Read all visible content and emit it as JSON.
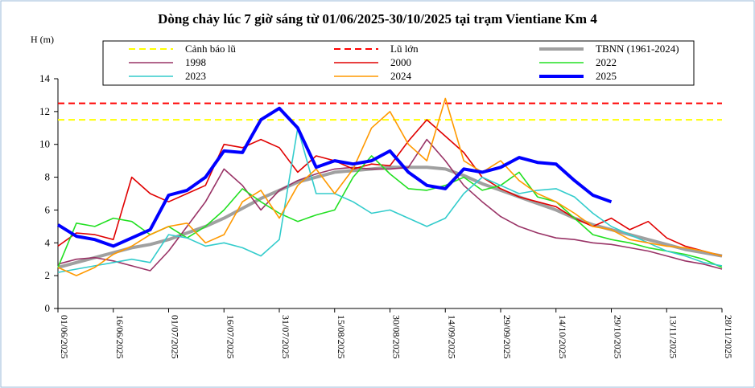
{
  "chart_data": {
    "type": "line",
    "title": "Dòng chảy lúc 7 giờ sáng từ 01/06/2025-30/10/2025 tại trạm Vientiane Km 4",
    "y_label": "H (m)",
    "x": [
      "01/06/2025",
      "06/06/2025",
      "11/06/2025",
      "16/06/2025",
      "21/06/2025",
      "26/06/2025",
      "01/07/2025",
      "06/07/2025",
      "11/07/2025",
      "16/07/2025",
      "21/07/2025",
      "26/07/2025",
      "31/07/2025",
      "05/08/2025",
      "10/08/2025",
      "15/08/2025",
      "20/08/2025",
      "25/08/2025",
      "30/08/2025",
      "04/09/2025",
      "09/09/2025",
      "14/09/2025",
      "19/09/2025",
      "24/09/2025",
      "29/09/2025",
      "04/10/2025",
      "09/10/2025",
      "14/10/2025",
      "19/10/2025",
      "24/10/2025",
      "29/10/2025",
      "03/11/2025",
      "08/11/2025",
      "13/11/2025",
      "18/11/2025",
      "23/11/2025",
      "28/11/2025"
    ],
    "xlim": [
      "01/06/2025",
      "28/11/2025"
    ],
    "xticks": [
      "01/06/2025",
      "16/06/2025",
      "01/07/2025",
      "16/07/2025",
      "31/07/2025",
      "15/08/2025",
      "30/08/2025",
      "14/09/2025",
      "29/09/2025",
      "14/10/2025",
      "29/10/2025",
      "13/11/2025",
      "28/11/2025"
    ],
    "ylim": [
      0,
      14
    ],
    "yticks": [
      0,
      2,
      4,
      6,
      8,
      10,
      12,
      14
    ],
    "reference_lines": [
      {
        "name": "Cảnh báo lũ",
        "value": 11.5,
        "color": "#ffff00"
      },
      {
        "name": "Lũ lớn",
        "value": 12.5,
        "color": "#ff0000"
      }
    ],
    "series": [
      {
        "name": "TBNN (1961-2024)",
        "color": "#a0a0a0",
        "values": [
          2.5,
          2.8,
          3.1,
          3.4,
          3.7,
          3.9,
          4.2,
          4.6,
          5.0,
          5.5,
          6.1,
          6.7,
          7.2,
          7.7,
          8.0,
          8.3,
          8.4,
          8.5,
          8.6,
          8.6,
          8.6,
          8.5,
          8.1,
          7.6,
          7.2,
          6.8,
          6.4,
          6.0,
          5.5,
          5.1,
          4.8,
          4.5,
          4.2,
          3.9,
          3.6,
          3.4,
          3.2
        ]
      },
      {
        "name": "1998",
        "color": "#993366",
        "values": [
          2.7,
          3.0,
          3.1,
          2.9,
          2.6,
          2.3,
          3.5,
          5.0,
          6.5,
          8.5,
          7.5,
          6.0,
          7.2,
          7.8,
          8.2,
          8.5,
          8.6,
          8.5,
          8.5,
          8.6,
          10.3,
          9.0,
          7.5,
          6.5,
          5.6,
          5.0,
          4.6,
          4.3,
          4.2,
          4.0,
          3.9,
          3.7,
          3.5,
          3.2,
          2.9,
          2.7,
          2.4
        ]
      },
      {
        "name": "2000",
        "color": "#e00000",
        "values": [
          3.8,
          4.6,
          4.5,
          4.2,
          8.0,
          7.0,
          6.5,
          7.0,
          7.5,
          10.0,
          9.8,
          10.3,
          9.8,
          8.3,
          9.3,
          9.0,
          8.5,
          8.8,
          8.7,
          10.2,
          11.5,
          10.5,
          9.5,
          8.0,
          7.3,
          6.8,
          6.5,
          6.2,
          5.5,
          5.0,
          5.5,
          4.8,
          5.3,
          4.3,
          3.8,
          3.5,
          3.2
        ]
      },
      {
        "name": "2022",
        "color": "#22e022",
        "values": [
          2.5,
          5.2,
          5.0,
          5.5,
          5.3,
          4.5,
          5.0,
          4.3,
          5.0,
          6.0,
          7.3,
          6.5,
          5.8,
          5.3,
          5.7,
          6.0,
          8.0,
          9.3,
          8.2,
          7.3,
          7.2,
          7.5,
          8.0,
          7.2,
          7.5,
          8.3,
          6.8,
          6.5,
          5.5,
          4.5,
          4.2,
          4.0,
          3.7,
          3.5,
          3.3,
          3.0,
          2.5
        ]
      },
      {
        "name": "2023",
        "color": "#33cccc",
        "values": [
          2.2,
          2.4,
          2.6,
          2.8,
          3.0,
          2.8,
          4.5,
          4.3,
          3.8,
          4.0,
          3.7,
          3.2,
          4.2,
          11.0,
          7.0,
          7.0,
          6.5,
          5.8,
          6.0,
          5.5,
          5.0,
          5.5,
          7.0,
          8.0,
          7.5,
          7.0,
          7.2,
          7.3,
          6.8,
          5.8,
          5.0,
          4.5,
          4.0,
          3.5,
          3.2,
          2.8,
          2.6
        ]
      },
      {
        "name": "2024",
        "color": "#ff9900",
        "values": [
          2.5,
          2.0,
          2.5,
          3.3,
          3.8,
          4.5,
          5.0,
          5.2,
          4.0,
          4.5,
          6.5,
          7.2,
          5.5,
          7.5,
          8.5,
          7.0,
          8.5,
          11.0,
          12.0,
          10.0,
          9.0,
          12.8,
          9.0,
          8.3,
          9.0,
          7.8,
          7.0,
          6.5,
          5.8,
          5.0,
          4.8,
          4.2,
          4.0,
          3.8,
          3.7,
          3.5,
          3.2
        ]
      },
      {
        "name": "2025",
        "color": "#0000ff",
        "values": [
          5.1,
          4.4,
          4.2,
          3.8,
          4.3,
          4.8,
          6.9,
          7.2,
          8.0,
          9.6,
          9.5,
          11.5,
          12.2,
          11.0,
          8.6,
          9.0,
          8.8,
          9.0,
          9.6,
          8.3,
          7.5,
          7.3,
          8.5,
          8.3,
          8.6,
          9.2,
          8.9,
          8.8,
          7.8,
          6.9,
          6.5,
          null,
          null,
          null,
          null,
          null,
          null
        ]
      }
    ]
  }
}
